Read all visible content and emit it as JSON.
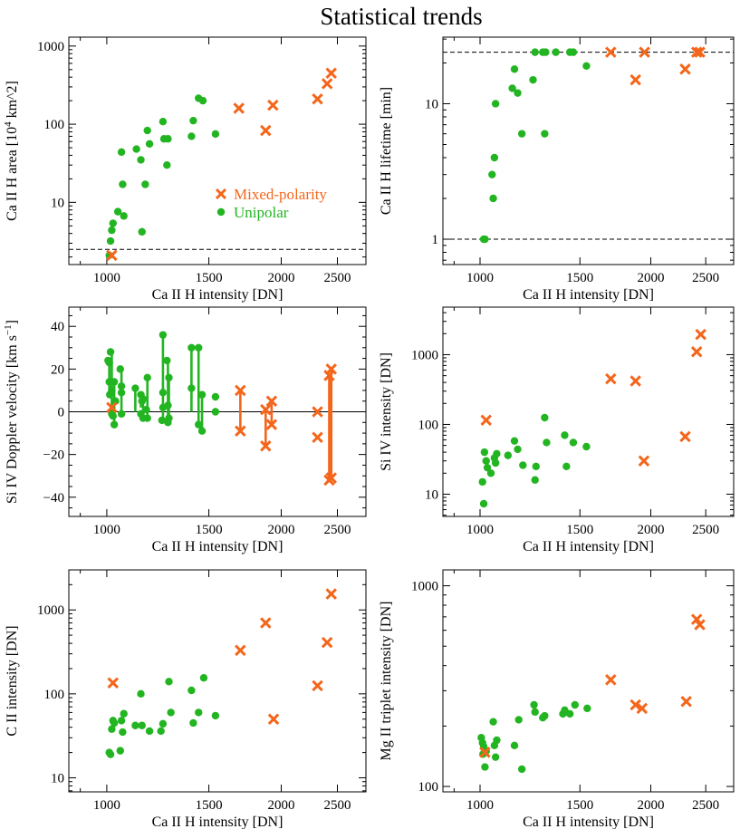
{
  "figure_title": "Statistical trends",
  "colors": {
    "mixed": "#f4661b",
    "unipolar": "#22b521",
    "axis": "#000000"
  },
  "legend": {
    "mixed_label": "Mixed-polarity",
    "unipolar_label": "Unipolar"
  },
  "chart_data": [
    {
      "id": "p1",
      "type": "scatter",
      "title": "",
      "xlabel": "Ca II H intensity [DN]",
      "ylabel": "Ca II H area [10^4 km^2]",
      "xscale": "log",
      "yscale": "log",
      "xlim": [
        860,
        2800
      ],
      "ylim": [
        1.6,
        1300
      ],
      "xticks": [
        1000,
        1500,
        2000,
        2500
      ],
      "xtick_labels": [
        "1000",
        "1500",
        "2000",
        "2500"
      ],
      "yticks": [
        10,
        100,
        1000
      ],
      "ytick_labels": [
        "10",
        "100",
        "1000"
      ],
      "hlines": [
        2.5
      ],
      "series": [
        {
          "name": "Unipolar",
          "marker": "dot",
          "x": [
            1010,
            1015,
            1020,
            1025,
            1045,
            1060,
            1065,
            1070,
            1125,
            1145,
            1150,
            1165,
            1175,
            1185,
            1250,
            1255,
            1270,
            1275,
            1400,
            1410,
            1440,
            1465,
            1540
          ],
          "y": [
            2.1,
            3.2,
            4.4,
            5.4,
            7.6,
            44,
            17,
            6.7,
            48,
            35,
            4.2,
            17,
            83,
            56,
            108,
            65,
            30,
            65,
            70,
            111,
            215,
            200,
            75
          ]
        },
        {
          "name": "Mixed-polarity",
          "marker": "x",
          "x": [
            1020,
            1690,
            1880,
            1935,
            2310,
            2400,
            2440
          ],
          "y": [
            2.1,
            160,
            83,
            175,
            210,
            330,
            450
          ]
        }
      ]
    },
    {
      "id": "p2",
      "type": "scatter",
      "title": "",
      "xlabel": "Ca II H intensity [DN]",
      "ylabel": "Ca II H lifetime [min]",
      "xscale": "log",
      "yscale": "log",
      "xlim": [
        860,
        2800
      ],
      "ylim": [
        0.65,
        31
      ],
      "xticks": [
        1000,
        1500,
        2000,
        2500
      ],
      "xtick_labels": [
        "1000",
        "1500",
        "2000",
        "2500"
      ],
      "yticks": [
        1,
        10
      ],
      "ytick_labels": [
        "1",
        "10"
      ],
      "hlines": [
        1.0,
        24
      ],
      "series": [
        {
          "name": "Unipolar",
          "marker": "dot",
          "x": [
            1015,
            1020,
            1050,
            1055,
            1060,
            1065,
            1140,
            1150,
            1165,
            1185,
            1240,
            1250,
            1290,
            1300,
            1305,
            1360,
            1440,
            1460,
            1540
          ],
          "y": [
            1,
            1,
            3,
            2,
            4,
            10,
            13,
            18,
            12,
            6,
            15,
            24,
            24,
            6,
            24,
            24,
            24,
            24,
            19
          ]
        },
        {
          "name": "Mixed-polarity",
          "marker": "x",
          "x": [
            1700,
            1880,
            1950,
            2300,
            2410,
            2440
          ],
          "y": [
            24,
            15,
            24,
            18,
            24,
            24
          ]
        }
      ]
    },
    {
      "id": "p3",
      "type": "scatter",
      "title": "",
      "xlabel": "Ca II H intensity [DN]",
      "ylabel": "Si IV Doppler velocity [km s^-1]",
      "xscale": "log",
      "yscale": "linear",
      "xlim": [
        860,
        2800
      ],
      "ylim": [
        -49,
        49
      ],
      "xticks": [
        1000,
        1500,
        2000,
        2500
      ],
      "xtick_labels": [
        "1000",
        "1500",
        "2000",
        "2500"
      ],
      "yticks": [
        -40,
        -20,
        0,
        20,
        40
      ],
      "ytick_labels": [
        "−40",
        "−20",
        "0",
        "20",
        "40"
      ],
      "hlines": [
        0
      ],
      "ranges": [
        {
          "name": "Unipolar",
          "x": [
            1010,
            1020,
            1030,
            1060,
            1120,
            1145,
            1155,
            1175,
            1250,
            1275,
            1280,
            1400,
            1440,
            1460
          ],
          "ymin": [
            8,
            -1,
            -6,
            -1,
            0,
            2,
            -3,
            -3,
            -4,
            -5,
            -3,
            0,
            -6,
            -9
          ],
          "ymax": [
            24,
            28,
            14,
            20,
            11,
            8,
            6,
            16,
            36,
            24,
            16,
            30,
            30,
            8
          ]
        },
        {
          "name": "Mixed-polarity",
          "x": [
            1700,
            1880,
            1925,
            2420,
            2440
          ],
          "ymin": [
            -9,
            -16,
            -6,
            -32,
            -31
          ],
          "ymax": [
            10,
            1,
            5,
            17,
            20
          ]
        }
      ],
      "series": [
        {
          "name": "Unipolar",
          "marker": "dot",
          "x": [
            1005,
            1010,
            1010,
            1012,
            1015,
            1020,
            1020,
            1025,
            1030,
            1030,
            1035,
            1055,
            1060,
            1060,
            1060,
            1120,
            1145,
            1145,
            1150,
            1155,
            1155,
            1170,
            1175,
            1175,
            1245,
            1250,
            1250,
            1250,
            1270,
            1275,
            1275,
            1280,
            1280,
            1400,
            1400,
            1440,
            1440,
            1460,
            1460,
            1540,
            1540
          ],
          "y": [
            24,
            23,
            14,
            8,
            28,
            -1,
            10,
            -2,
            14,
            -6,
            5,
            20,
            12,
            9,
            -1,
            11,
            8,
            -1,
            5,
            6,
            -3,
            1,
            16,
            -3,
            -4,
            36,
            9,
            2,
            24,
            -5,
            3,
            16,
            -3,
            30,
            11,
            30,
            -6,
            8,
            -9,
            7,
            0
          ]
        },
        {
          "name": "Mixed-polarity",
          "marker": "x",
          "x": [
            1020,
            1700,
            1700,
            1880,
            1880,
            1925,
            1925,
            2310,
            2310,
            2420,
            2420,
            2440,
            2440
          ],
          "y": [
            2,
            10,
            -9,
            1,
            -16,
            5,
            -6,
            0,
            -12,
            17,
            -32,
            20,
            -31
          ]
        }
      ]
    },
    {
      "id": "p4",
      "type": "scatter",
      "title": "",
      "xlabel": "Ca II H intensity [DN]",
      "ylabel": "Si IV intensity [DN]",
      "xscale": "log",
      "yscale": "log",
      "xlim": [
        860,
        2800
      ],
      "ylim": [
        4.8,
        4800
      ],
      "xticks": [
        1000,
        1500,
        2000,
        2500
      ],
      "xtick_labels": [
        "1000",
        "1500",
        "2000",
        "2500"
      ],
      "yticks": [
        10,
        100,
        1000
      ],
      "ytick_labels": [
        "10",
        "100",
        "1000"
      ],
      "hlines": [],
      "series": [
        {
          "name": "Unipolar",
          "marker": "dot",
          "x": [
            1010,
            1015,
            1018,
            1025,
            1030,
            1045,
            1060,
            1065,
            1070,
            1120,
            1150,
            1165,
            1190,
            1250,
            1255,
            1300,
            1310,
            1410,
            1420,
            1460,
            1540
          ],
          "y": [
            15,
            7.3,
            40,
            30,
            24,
            20,
            33,
            28,
            38,
            36,
            58,
            44,
            26,
            16,
            25,
            125,
            55,
            70,
            25,
            55,
            48
          ]
        },
        {
          "name": "Mixed-polarity",
          "marker": "x",
          "x": [
            1025,
            1700,
            1880,
            1945,
            2300,
            2410,
            2450
          ],
          "y": [
            115,
            450,
            420,
            30,
            67,
            1100,
            1950
          ]
        }
      ]
    },
    {
      "id": "p5",
      "type": "scatter",
      "title": "",
      "xlabel": "Ca II H intensity [DN]",
      "ylabel": "C II intensity [DN]",
      "xscale": "log",
      "yscale": "log",
      "xlim": [
        860,
        2800
      ],
      "ylim": [
        6.8,
        3000
      ],
      "xticks": [
        1000,
        1500,
        2000,
        2500
      ],
      "xtick_labels": [
        "1000",
        "1500",
        "2000",
        "2500"
      ],
      "yticks": [
        10,
        100,
        1000
      ],
      "ytick_labels": [
        "10",
        "100",
        "1000"
      ],
      "hlines": [],
      "series": [
        {
          "name": "Unipolar",
          "marker": "dot",
          "x": [
            1010,
            1015,
            1020,
            1025,
            1030,
            1055,
            1060,
            1065,
            1070,
            1120,
            1145,
            1150,
            1185,
            1240,
            1250,
            1280,
            1290,
            1400,
            1410,
            1440,
            1470,
            1540
          ],
          "y": [
            20,
            19,
            38,
            48,
            45,
            21,
            48,
            35,
            58,
            42,
            100,
            42,
            36,
            36,
            44,
            140,
            60,
            110,
            45,
            60,
            155,
            55
          ]
        },
        {
          "name": "Mixed-polarity",
          "marker": "x",
          "x": [
            1025,
            1700,
            1880,
            1940,
            2310,
            2400,
            2440
          ],
          "y": [
            135,
            330,
            700,
            50,
            125,
            410,
            1550
          ]
        }
      ]
    },
    {
      "id": "p6",
      "type": "scatter",
      "title": "",
      "xlabel": "Ca II H intensity [DN]",
      "ylabel": "Mg II triplet intensity [DN]",
      "xscale": "log",
      "yscale": "log",
      "xlim": [
        860,
        2800
      ],
      "ylim": [
        94,
        1200
      ],
      "xticks": [
        1000,
        1500,
        2000,
        2500
      ],
      "xtick_labels": [
        "1000",
        "1500",
        "2000",
        "2500"
      ],
      "yticks": [
        100,
        1000
      ],
      "ytick_labels": [
        "100",
        "1000"
      ],
      "hlines": [],
      "series": [
        {
          "name": "Unipolar",
          "marker": "dot",
          "x": [
            1005,
            1010,
            1012,
            1015,
            1020,
            1025,
            1055,
            1060,
            1065,
            1070,
            1150,
            1170,
            1185,
            1245,
            1250,
            1290,
            1300,
            1400,
            1410,
            1440,
            1470,
            1545
          ],
          "y": [
            175,
            165,
            145,
            158,
            125,
            150,
            210,
            160,
            140,
            170,
            160,
            215,
            122,
            255,
            235,
            220,
            225,
            230,
            240,
            230,
            255,
            245
          ]
        },
        {
          "name": "Mixed-polarity",
          "marker": "x",
          "x": [
            1020,
            1700,
            1880,
            1930,
            2310,
            2410,
            2440
          ],
          "y": [
            148,
            340,
            255,
            245,
            265,
            680,
            640
          ]
        }
      ]
    }
  ]
}
